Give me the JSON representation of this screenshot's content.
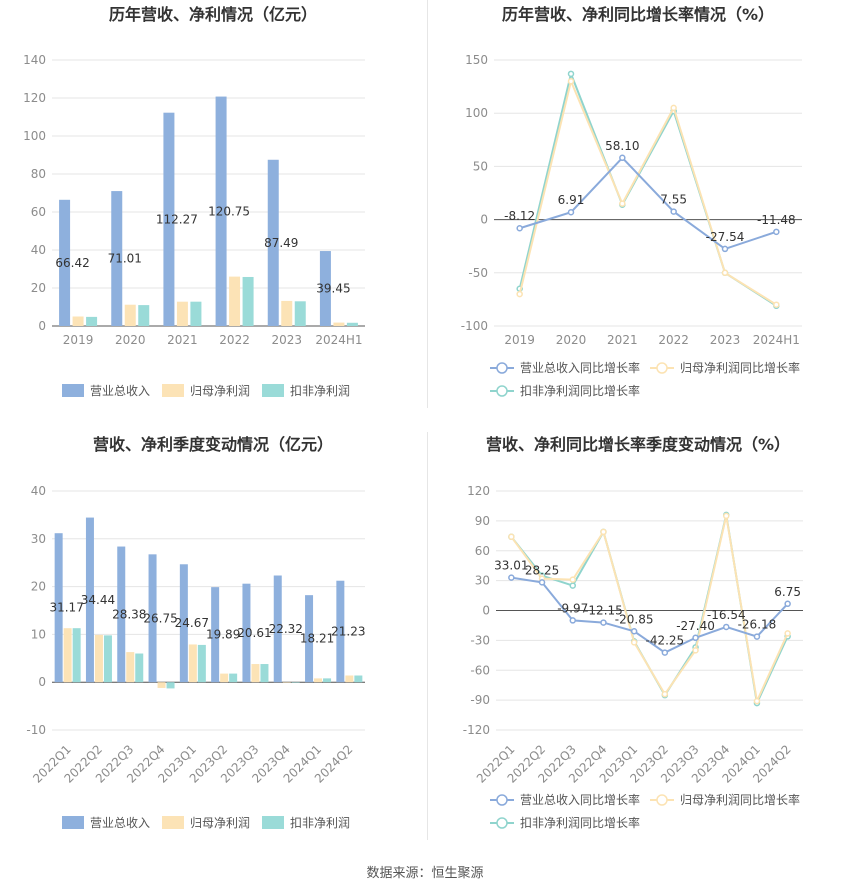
{
  "source_text": "数据来源：恒生聚源",
  "colors": {
    "revenue": "#8eb0dd",
    "parent_profit": "#fce3b6",
    "deducted_profit": "#9adbd8",
    "rev_line": "#8aaadb",
    "parent_line": "#fce3b3",
    "deducted_line": "#8fd4cd"
  },
  "chart_data": [
    {
      "id": "annual-bars",
      "type": "bar",
      "title": "历年营收、净利情况（亿元）",
      "categories": [
        "2019",
        "2020",
        "2021",
        "2022",
        "2023",
        "2024H1"
      ],
      "series": [
        {
          "name": "营业总收入",
          "values": [
            66.42,
            71.01,
            112.27,
            120.75,
            87.49,
            39.45
          ],
          "labels": [
            "66.42",
            "71.01",
            "112.27",
            "120.75",
            "87.49",
            "39.45"
          ]
        },
        {
          "name": "归母净利润",
          "values": [
            5.0,
            11.2,
            12.8,
            26.0,
            13.2,
            1.8
          ]
        },
        {
          "name": "扣非净利润",
          "values": [
            4.8,
            11.0,
            12.8,
            25.8,
            13.0,
            1.7
          ]
        }
      ],
      "yticks": [
        "140",
        "120",
        "100",
        "80",
        "60",
        "40",
        "20",
        "0"
      ],
      "ylim": [
        0,
        140
      ],
      "grid": true,
      "legend_position": "bottom"
    },
    {
      "id": "annual-growth",
      "type": "line",
      "title": "历年营收、净利同比增长率情况（%）",
      "categories": [
        "2019",
        "2020",
        "2021",
        "2022",
        "2023",
        "2024H1"
      ],
      "series": [
        {
          "name": "营业总收入同比增长率",
          "values": [
            -8.12,
            6.91,
            58.1,
            7.55,
            -27.54,
            -11.48
          ],
          "labels": [
            "-8.12",
            "6.91",
            "58.10",
            "7.55",
            "-27.54",
            "-11.48"
          ]
        },
        {
          "name": "归母净利润同比增长率",
          "values": [
            -70,
            130,
            15,
            105,
            -50,
            -80
          ]
        },
        {
          "name": "扣非净利润同比增长率",
          "values": [
            -65,
            137,
            14,
            102,
            -50,
            -81
          ]
        }
      ],
      "yticks": [
        "150",
        "100",
        "50",
        "0",
        "-50",
        "-100"
      ],
      "ylim": [
        -100,
        150
      ],
      "grid": true,
      "legend_position": "bottom"
    },
    {
      "id": "quarterly-bars",
      "type": "bar",
      "title": "营收、净利季度变动情况（亿元）",
      "categories": [
        "2022Q1",
        "2022Q2",
        "2022Q3",
        "2022Q4",
        "2023Q1",
        "2023Q2",
        "2023Q3",
        "2023Q4",
        "2024Q1",
        "2024Q2"
      ],
      "series": [
        {
          "name": "营业总收入",
          "values": [
            31.17,
            34.44,
            28.38,
            26.75,
            24.67,
            19.89,
            20.61,
            22.32,
            18.21,
            21.23
          ],
          "labels": [
            "31.17",
            "34.44",
            "28.38",
            "26.75",
            "24.67",
            "19.89",
            "20.61",
            "22.32",
            "18.21",
            "21.23"
          ]
        },
        {
          "name": "归母净利润",
          "values": [
            11.3,
            9.9,
            6.3,
            -1.2,
            7.9,
            1.8,
            3.8,
            0,
            0.8,
            1.4
          ]
        },
        {
          "name": "扣非净利润",
          "values": [
            11.3,
            9.8,
            6.0,
            -1.3,
            7.8,
            1.8,
            3.8,
            0,
            0.8,
            1.4
          ]
        }
      ],
      "yticks": [
        "40",
        "30",
        "20",
        "10",
        "0",
        "-10"
      ],
      "ylim": [
        -10,
        40
      ],
      "grid": true,
      "legend_position": "bottom"
    },
    {
      "id": "quarterly-growth",
      "type": "line",
      "title": "营收、净利同比增长率季度变动情况（%）",
      "categories": [
        "2022Q1",
        "2022Q2",
        "2022Q3",
        "2022Q4",
        "2023Q1",
        "2023Q2",
        "2023Q3",
        "2023Q4",
        "2024Q1",
        "2024Q2"
      ],
      "series": [
        {
          "name": "营业总收入同比增长率",
          "values": [
            33.01,
            28.25,
            -9.97,
            -12.15,
            -20.85,
            -42.25,
            -27.4,
            -16.54,
            -26.18,
            6.75
          ],
          "labels": [
            "33.01",
            "28.25",
            "-9.97",
            "-12.15",
            "-20.85",
            "-42.25",
            "-27.40",
            "-16.54",
            "-26.18",
            "6.75"
          ]
        },
        {
          "name": "归母净利润同比增长率",
          "values": [
            74,
            32,
            31,
            79,
            -32,
            -84,
            -40,
            95,
            -91,
            -23
          ]
        },
        {
          "name": "扣非净利润同比增长率",
          "values": [
            74,
            35,
            25,
            79,
            -31,
            -85,
            -37,
            96,
            -93,
            -26
          ]
        }
      ],
      "yticks": [
        "120",
        "90",
        "60",
        "30",
        "0",
        "-30",
        "-60",
        "-90",
        "-120"
      ],
      "ylim": [
        -120,
        120
      ],
      "grid": true,
      "legend_position": "bottom"
    }
  ]
}
